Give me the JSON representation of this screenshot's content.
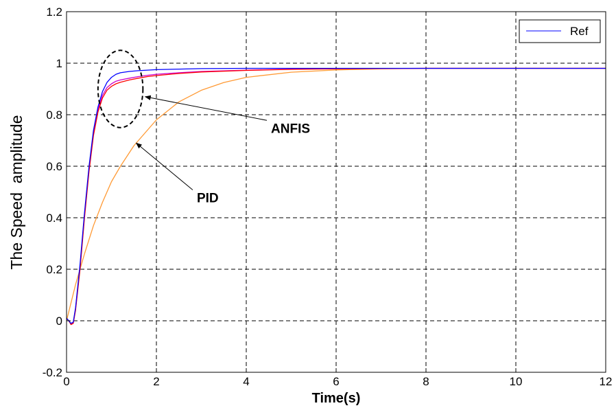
{
  "chart_data": {
    "type": "line",
    "title": "",
    "xlabel": "Time(s)",
    "ylabel": "The Speed  amplitude",
    "xlim": [
      0,
      12
    ],
    "ylim": [
      -0.2,
      1.2
    ],
    "xticks": [
      0,
      2,
      4,
      6,
      8,
      10,
      12
    ],
    "yticks": [
      -0.2,
      0,
      0.2,
      0.4,
      0.6,
      0.8,
      1,
      1.2
    ],
    "xtick_labels": [
      "0",
      "2",
      "4",
      "6",
      "8",
      "10",
      "12"
    ],
    "ytick_labels": [
      "-0.2",
      "0",
      "0.2",
      "0.4",
      "0.6",
      "0.8",
      "1",
      "1.2"
    ],
    "grid": true,
    "legend": {
      "placement": "top-right",
      "entries": [
        "Ref"
      ]
    },
    "series": [
      {
        "name": "Ref",
        "color": "#0000ff",
        "x": [
          0,
          0.05,
          0.1,
          0.15,
          0.2,
          0.3,
          0.4,
          0.5,
          0.6,
          0.7,
          0.8,
          0.9,
          1.0,
          1.1,
          1.2,
          1.4,
          1.6,
          1.8,
          2.0,
          2.5,
          3.0,
          4.0,
          5.0,
          6.0,
          8.0,
          10.0,
          12.0
        ],
        "y": [
          0.01,
          0.0,
          -0.01,
          -0.005,
          0.05,
          0.22,
          0.42,
          0.6,
          0.74,
          0.83,
          0.89,
          0.925,
          0.945,
          0.957,
          0.963,
          0.968,
          0.971,
          0.973,
          0.975,
          0.977,
          0.979,
          0.98,
          0.98,
          0.98,
          0.98,
          0.98,
          0.98
        ]
      },
      {
        "color": "#ff0000",
        "x": [
          0,
          0.05,
          0.1,
          0.15,
          0.2,
          0.3,
          0.4,
          0.5,
          0.6,
          0.7,
          0.8,
          0.9,
          1.0,
          1.1,
          1.2,
          1.4,
          1.6,
          1.8,
          2.0,
          2.5,
          3.0,
          4.0,
          5.0,
          6.0,
          8.0,
          10.0,
          12.0
        ],
        "y": [
          0.01,
          0.0,
          -0.015,
          -0.01,
          0.04,
          0.2,
          0.4,
          0.58,
          0.72,
          0.81,
          0.865,
          0.895,
          0.91,
          0.92,
          0.926,
          0.935,
          0.942,
          0.948,
          0.952,
          0.96,
          0.966,
          0.972,
          0.976,
          0.978,
          0.98,
          0.98,
          0.98
        ]
      },
      {
        "color": "#cc00cc",
        "x": [
          0,
          0.05,
          0.1,
          0.15,
          0.2,
          0.3,
          0.4,
          0.5,
          0.6,
          0.7,
          0.8,
          0.9,
          1.0,
          1.1,
          1.2,
          1.4,
          1.6,
          1.8,
          2.0,
          2.5,
          3.0,
          4.0,
          5.0,
          6.0,
          8.0,
          10.0,
          12.0
        ],
        "y": [
          0.01,
          0.0,
          -0.012,
          -0.008,
          0.045,
          0.21,
          0.41,
          0.59,
          0.73,
          0.82,
          0.875,
          0.905,
          0.92,
          0.93,
          0.935,
          0.942,
          0.948,
          0.953,
          0.957,
          0.963,
          0.968,
          0.973,
          0.977,
          0.979,
          0.98,
          0.98,
          0.98
        ]
      },
      {
        "color": "#ff9933",
        "x": [
          0,
          0.2,
          0.4,
          0.6,
          0.8,
          1.0,
          1.2,
          1.5,
          2.0,
          2.5,
          3.0,
          3.5,
          4.0,
          5.0,
          6.0,
          7.0,
          8.0,
          10.0,
          12.0
        ],
        "y": [
          0.0,
          0.14,
          0.26,
          0.37,
          0.46,
          0.54,
          0.6,
          0.68,
          0.78,
          0.85,
          0.895,
          0.925,
          0.945,
          0.965,
          0.974,
          0.978,
          0.98,
          0.98,
          0.98
        ]
      }
    ],
    "annotations": [
      {
        "text": "ANFIS",
        "x": 4.55,
        "y": 0.73,
        "arrow_to": [
          1.75,
          0.87
        ]
      },
      {
        "text": "PID",
        "x": 2.9,
        "y": 0.46,
        "arrow_to": [
          1.55,
          0.69
        ]
      }
    ],
    "highlight_circle": {
      "cx": 1.2,
      "cy": 0.9,
      "rx": 0.5,
      "ry": 0.15
    }
  }
}
